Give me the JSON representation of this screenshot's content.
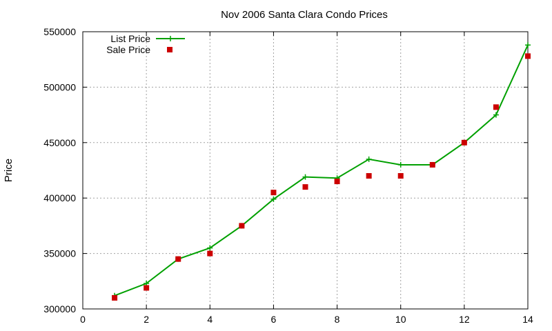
{
  "chart_data": {
    "type": "line",
    "title": "Nov 2006 Santa Clara Condo Prices",
    "xlabel": "",
    "ylabel": "Price",
    "xlim": [
      0,
      14
    ],
    "ylim": [
      300000,
      550000
    ],
    "xticks": [
      "0",
      "2",
      "4",
      "6",
      "8",
      "10",
      "12",
      "14"
    ],
    "yticks": [
      "300000",
      "350000",
      "400000",
      "450000",
      "500000",
      "550000"
    ],
    "grid": true,
    "legend_position": "top-left",
    "series": [
      {
        "name": "List Price",
        "style": "line+cross",
        "color": "#00a000",
        "x": [
          1,
          2,
          3,
          4,
          5,
          6,
          7,
          8,
          9,
          10,
          11,
          12,
          13,
          14
        ],
        "values": [
          312000,
          323000,
          345000,
          355000,
          375000,
          399000,
          419000,
          418000,
          435000,
          430000,
          430000,
          450000,
          475000,
          538000
        ]
      },
      {
        "name": "Sale Price",
        "style": "square",
        "color": "#cc0000",
        "x": [
          1,
          2,
          3,
          4,
          5,
          6,
          7,
          8,
          9,
          10,
          11,
          12,
          13,
          14
        ],
        "values": [
          310000,
          319000,
          345000,
          350000,
          375000,
          405000,
          410000,
          415000,
          420000,
          420000,
          430000,
          450000,
          482000,
          528000
        ]
      }
    ]
  }
}
